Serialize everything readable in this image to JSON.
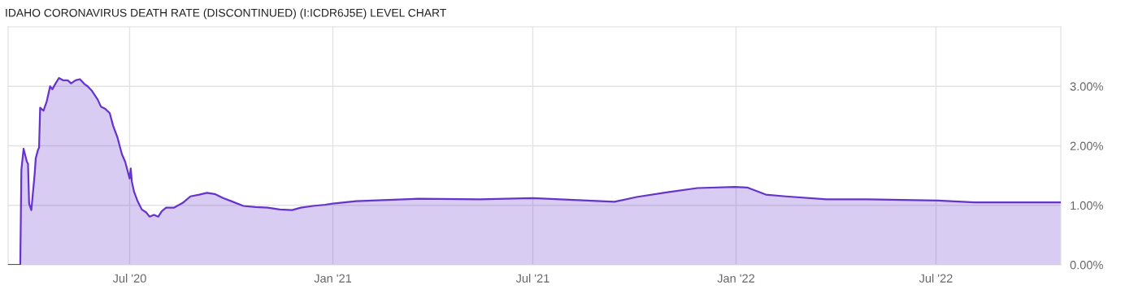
{
  "chart_data": {
    "type": "area",
    "title": "IDAHO CORONAVIRUS DEATH RATE (DISCONTINUED) (I:ICDR6J5E) LEVEL CHART",
    "x": [
      "2020-03-13",
      "2020-03-24",
      "2020-03-25",
      "2020-03-27",
      "2020-03-30",
      "2020-03-31",
      "2020-04-01",
      "2020-04-03",
      "2020-04-06",
      "2020-04-07",
      "2020-04-09",
      "2020-04-10",
      "2020-04-11",
      "2020-04-14",
      "2020-04-17",
      "2020-04-20",
      "2020-04-22",
      "2020-04-25",
      "2020-04-28",
      "2020-05-02",
      "2020-05-06",
      "2020-05-09",
      "2020-05-13",
      "2020-05-17",
      "2020-05-21",
      "2020-05-24",
      "2020-05-28",
      "2020-06-02",
      "2020-06-05",
      "2020-06-09",
      "2020-06-13",
      "2020-06-16",
      "2020-06-20",
      "2020-06-24",
      "2020-06-27",
      "2020-07-01",
      "2020-07-02",
      "2020-07-03",
      "2020-07-05",
      "2020-07-08",
      "2020-07-12",
      "2020-07-16",
      "2020-07-19",
      "2020-07-23",
      "2020-07-27",
      "2020-07-30",
      "2020-08-03",
      "2020-08-10",
      "2020-08-18",
      "2020-08-25",
      "2020-09-02",
      "2020-09-09",
      "2020-09-16",
      "2020-09-24",
      "2020-10-01",
      "2020-10-12",
      "2020-10-23",
      "2020-11-03",
      "2020-11-14",
      "2020-11-25",
      "2020-12-03",
      "2020-12-14",
      "2020-12-25",
      "2021-01-01",
      "2021-01-22",
      "2021-03-19",
      "2021-05-14",
      "2021-07-01",
      "2021-08-07",
      "2021-09-13",
      "2021-10-03",
      "2021-10-31",
      "2021-11-27",
      "2021-12-31",
      "2022-01-11",
      "2022-01-28",
      "2022-02-15",
      "2022-03-24",
      "2022-04-30",
      "2022-07-03",
      "2022-08-05",
      "2022-10-22"
    ],
    "series": [
      {
        "color": "#6633cc",
        "values": [
          0,
          0,
          1.6,
          1.95,
          1.73,
          1.7,
          1.03,
          0.92,
          1.52,
          1.79,
          1.93,
          1.97,
          2.64,
          2.59,
          2.75,
          3.0,
          2.95,
          3.05,
          3.14,
          3.1,
          3.1,
          3.05,
          3.1,
          3.12,
          3.04,
          3.0,
          2.92,
          2.78,
          2.66,
          2.62,
          2.55,
          2.34,
          2.14,
          1.86,
          1.73,
          1.45,
          1.62,
          1.4,
          1.23,
          1.08,
          0.93,
          0.88,
          0.81,
          0.84,
          0.81,
          0.9,
          0.96,
          0.96,
          1.04,
          1.15,
          1.18,
          1.21,
          1.19,
          1.12,
          1.07,
          0.99,
          0.97,
          0.96,
          0.93,
          0.92,
          0.96,
          0.99,
          1.01,
          1.03,
          1.07,
          1.11,
          1.1,
          1.12,
          1.09,
          1.06,
          1.14,
          1.22,
          1.29,
          1.31,
          1.3,
          1.18,
          1.15,
          1.1,
          1.1,
          1.08,
          1.05,
          1.05
        ]
      }
    ],
    "xlim": [
      "2020-03-13",
      "2022-10-22"
    ],
    "xticks": [
      {
        "value": "2020-07-01",
        "label": "Jul '20"
      },
      {
        "value": "2021-01-01",
        "label": "Jan '21"
      },
      {
        "value": "2021-07-01",
        "label": "Jul '21"
      },
      {
        "value": "2022-01-01",
        "label": "Jan '22"
      },
      {
        "value": "2022-07-01",
        "label": "Jul '22"
      }
    ],
    "ylim": [
      0,
      4
    ],
    "yticks": [
      {
        "value": 0,
        "label": "0.00%"
      },
      {
        "value": 1,
        "label": "1.00%"
      },
      {
        "value": 2,
        "label": "2.00%"
      },
      {
        "value": 3,
        "label": "3.00%"
      }
    ],
    "grid": true,
    "legend": false,
    "marker": "none",
    "line_style": "solid"
  }
}
